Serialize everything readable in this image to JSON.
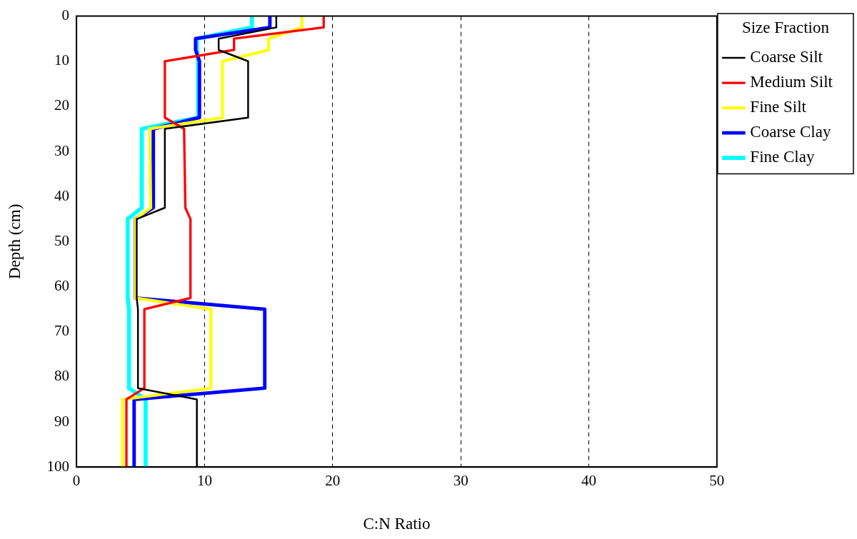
{
  "chart_data": {
    "type": "line",
    "xlabel": "C:N Ratio",
    "ylabel": "Depth (cm)",
    "legend_title": "Size Fraction",
    "legend": "right",
    "grid": "x",
    "marker": "none",
    "line_style": "solid",
    "xlim": [
      0,
      50
    ],
    "xticks": [
      0,
      10,
      20,
      30,
      40,
      50
    ],
    "ylim": [
      100,
      0
    ],
    "yticks": [
      0,
      10,
      20,
      30,
      40,
      50,
      60,
      70,
      80,
      90,
      100
    ],
    "series": [
      {
        "name": "Coarse Silt",
        "color": "#000000",
        "x": [
          15.6,
          15.6,
          11.1,
          11.1,
          13.4,
          13.4,
          6.9,
          6.9,
          4.7,
          4.7,
          4.8,
          4.8,
          9.4,
          9.4
        ],
        "values": [
          0,
          2.5,
          5,
          7.5,
          10,
          22.5,
          25,
          42.5,
          45,
          62.5,
          65,
          82.5,
          85,
          100
        ]
      },
      {
        "name": "Medium Silt",
        "color": "#ff0000",
        "x": [
          19.3,
          19.3,
          12.3,
          12.3,
          6.9,
          6.9,
          8.4,
          8.5,
          8.9,
          8.9,
          5.3,
          5.3,
          3.9,
          3.9
        ],
        "values": [
          0,
          2.5,
          5,
          7.5,
          10,
          22.5,
          25,
          42.5,
          45,
          62.5,
          65,
          82.5,
          85,
          100
        ]
      },
      {
        "name": "Fine Silt",
        "color": "#ffff00",
        "x": [
          17.6,
          17.6,
          15.0,
          15.0,
          11.4,
          11.4,
          5.7,
          5.8,
          4.6,
          4.6,
          10.5,
          10.5,
          3.6,
          3.6
        ],
        "values": [
          0,
          2.5,
          5,
          7.5,
          10,
          22.5,
          25,
          42.5,
          45,
          62.5,
          65,
          82.5,
          85,
          100
        ]
      },
      {
        "name": "Coarse Clay",
        "color": "#0000ff",
        "x": [
          15.1,
          15.1,
          9.3,
          9.3,
          9.6,
          9.6,
          6.0,
          6.0,
          4.6,
          4.6,
          14.7,
          14.7,
          4.5,
          4.5
        ],
        "values": [
          0,
          2.5,
          5,
          7.5,
          10,
          22.5,
          25,
          42.5,
          45,
          62.5,
          65,
          82.5,
          85,
          100
        ]
      },
      {
        "name": "Fine Clay",
        "color": "#00ffff",
        "x": [
          13.7,
          13.7,
          9.4,
          9.4,
          9.5,
          9.5,
          5.1,
          5.1,
          4.0,
          4.0,
          4.1,
          4.1,
          5.4,
          5.4
        ],
        "values": [
          0,
          2.5,
          5,
          7.5,
          10,
          22.5,
          25,
          42.5,
          45,
          62.5,
          65,
          82.5,
          85,
          100
        ]
      }
    ]
  }
}
